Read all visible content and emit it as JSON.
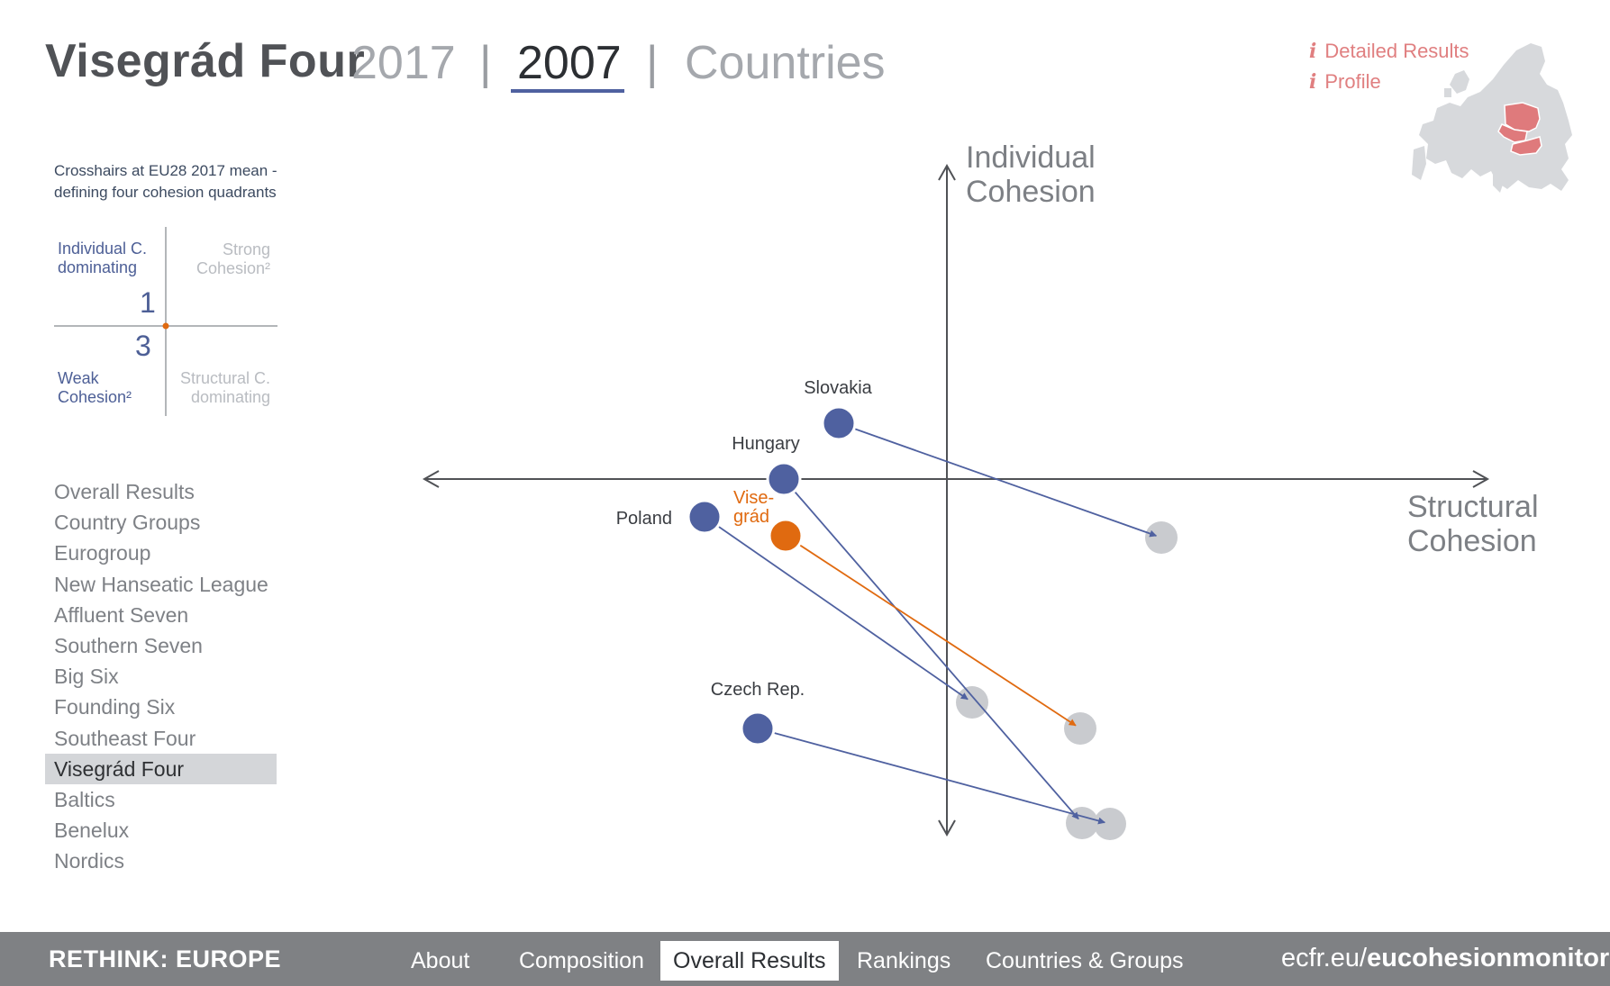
{
  "colors": {
    "accent_blue": "#4f61a0",
    "accent_orange": "#e06a10",
    "link_red": "#e07f80",
    "end_gray": "#c9cbcf",
    "footer_bg": "#7f8184",
    "map_land": "#d7d9dc",
    "map_highlight": "#df7a7c"
  },
  "header": {
    "title": "Visegrád Four",
    "year_2017": "2017",
    "separator": "|",
    "year_2007": "2007",
    "countries": "Countries"
  },
  "info_links": [
    {
      "icon": "info-icon",
      "glyph": "i",
      "label": "Detailed Results"
    },
    {
      "icon": "info-icon",
      "glyph": "i",
      "label": "Profile"
    }
  ],
  "legend": {
    "caption_line1": "Crosshairs at EU28 2017 mean -",
    "caption_line2": "defining four cohesion quadrants",
    "top_left_line1": "Individual C.",
    "top_left_line2": "dominating",
    "top_right_line1": "Strong",
    "top_right_line2": "Cohesion²",
    "bottom_left_line1": "Weak",
    "bottom_left_line2": "Cohesion²",
    "bottom_right_line1": "Structural C.",
    "bottom_right_line2": "dominating",
    "count_top": "1",
    "count_bottom": "3"
  },
  "nav": {
    "items": [
      "Overall Results",
      "Country Groups",
      "Eurogroup",
      "New Hanseatic League",
      "Affluent Seven",
      "Southern Seven",
      "Big Six",
      "Founding Six",
      "Southeast Four",
      "Visegrád Four",
      "Baltics",
      "Benelux",
      "Nordics"
    ],
    "active_index": 9
  },
  "chart_data": {
    "type": "scatter",
    "xlabel_line1": "Structural",
    "xlabel_line2": "Cohesion",
    "ylabel_line1": "Individual",
    "ylabel_line2": "Cohesion",
    "axes_origin": [
      0,
      0
    ],
    "xlim": [
      -580,
      600
    ],
    "ylim": [
      -395,
      348
    ],
    "series": [
      {
        "name": "Slovakia",
        "label_lines": [
          "Slovakia"
        ],
        "color": "blue",
        "start": [
          -120,
          62
        ],
        "end": [
          238,
          -65
        ]
      },
      {
        "name": "Hungary",
        "label_lines": [
          "Hungary"
        ],
        "color": "blue",
        "start": [
          -181,
          0
        ],
        "end": [
          150,
          -382
        ]
      },
      {
        "name": "Poland",
        "label_lines": [
          "Poland"
        ],
        "color": "blue",
        "start": [
          -269,
          -42
        ],
        "end": [
          28,
          -248
        ]
      },
      {
        "name": "Visegrád",
        "label_lines": [
          "Vise-",
          "grád"
        ],
        "color": "orange",
        "start": [
          -179,
          -63
        ],
        "end": [
          148,
          -277
        ]
      },
      {
        "name": "Czech Rep.",
        "label_lines": [
          "Czech Rep."
        ],
        "color": "blue",
        "start": [
          -210,
          -277
        ],
        "end": [
          181,
          -383
        ]
      }
    ]
  },
  "footer": {
    "brand": "RETHINK: EUROPE",
    "nav": [
      "About",
      "Composition",
      "Overall Results",
      "Rankings",
      "Countries & Groups"
    ],
    "active_index": 2,
    "site_prefix": "ecfr.eu/",
    "site_bold": "eucohesionmonitor"
  }
}
